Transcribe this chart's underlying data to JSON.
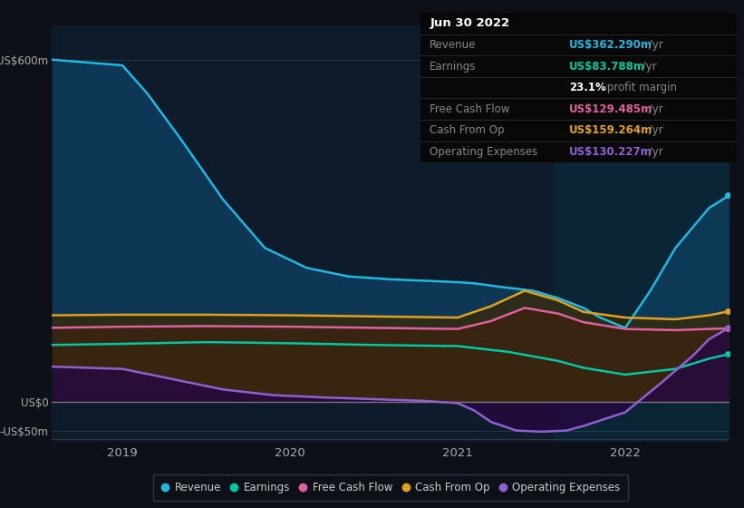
{
  "bg_color": "#0d1117",
  "chart_bg_left": "#0d1b2a",
  "chart_bg_right": "#0a2535",
  "panel_bg": "#0a0a0a",
  "ylim": [
    -70,
    660
  ],
  "yticks": [
    -50,
    0,
    600
  ],
  "ytick_labels": [
    "-US$50m",
    "US$0",
    "US$600m"
  ],
  "xlabel_ticks": [
    2019.0,
    2020.0,
    2021.0,
    2022.0
  ],
  "xlim_start": 2018.58,
  "xlim_end": 2022.62,
  "highlight_x_start": 2021.58,
  "highlight_x_end": 2022.62,
  "series": {
    "Revenue": {
      "color": "#1eb8e0",
      "fill_color": "#0d3d5c",
      "fill_alpha": 0.85,
      "x": [
        2018.58,
        2019.0,
        2019.15,
        2019.35,
        2019.6,
        2019.85,
        2020.1,
        2020.35,
        2020.6,
        2020.85,
        2021.0,
        2021.1,
        2021.25,
        2021.45,
        2021.6,
        2021.75,
        2021.85,
        2022.0,
        2022.15,
        2022.3,
        2022.5,
        2022.62
      ],
      "y": [
        600,
        590,
        540,
        460,
        355,
        270,
        235,
        220,
        215,
        212,
        210,
        208,
        202,
        195,
        182,
        165,
        148,
        130,
        195,
        270,
        340,
        362
      ]
    },
    "Earnings": {
      "color": "#00c8a0",
      "fill_color": "#004d3a",
      "fill_alpha": 0.7,
      "x": [
        2018.58,
        2019.0,
        2019.5,
        2020.0,
        2020.5,
        2021.0,
        2021.3,
        2021.6,
        2021.75,
        2022.0,
        2022.3,
        2022.5,
        2022.62
      ],
      "y": [
        100,
        102,
        105,
        103,
        100,
        98,
        88,
        72,
        60,
        48,
        58,
        76,
        84
      ]
    },
    "FreeCashFlow": {
      "color": "#e060a0",
      "fill_color": "#4a1030",
      "fill_alpha": 0.7,
      "x": [
        2018.58,
        2019.0,
        2019.5,
        2020.0,
        2020.5,
        2021.0,
        2021.2,
        2021.4,
        2021.6,
        2021.75,
        2022.0,
        2022.3,
        2022.5,
        2022.62
      ],
      "y": [
        130,
        132,
        133,
        132,
        130,
        128,
        142,
        165,
        155,
        140,
        128,
        126,
        128,
        129
      ]
    },
    "CashFromOp": {
      "color": "#e0a020",
      "fill_color": "#3a2800",
      "fill_alpha": 0.7,
      "x": [
        2018.58,
        2019.0,
        2019.5,
        2020.0,
        2020.5,
        2021.0,
        2021.2,
        2021.4,
        2021.6,
        2021.75,
        2022.0,
        2022.3,
        2022.5,
        2022.62
      ],
      "y": [
        152,
        153,
        153,
        152,
        150,
        148,
        168,
        195,
        178,
        158,
        148,
        145,
        152,
        159
      ]
    },
    "OperatingExpenses": {
      "color": "#9060d0",
      "fill_color": "#250840",
      "fill_alpha": 0.8,
      "x": [
        2018.58,
        2019.0,
        2019.3,
        2019.6,
        2019.9,
        2020.2,
        2020.5,
        2020.8,
        2021.0,
        2021.1,
        2021.2,
        2021.35,
        2021.5,
        2021.65,
        2021.75,
        2022.0,
        2022.2,
        2022.4,
        2022.5,
        2022.62
      ],
      "y": [
        62,
        58,
        40,
        22,
        12,
        8,
        5,
        2,
        -2,
        -15,
        -35,
        -50,
        -52,
        -50,
        -42,
        -18,
        30,
        80,
        110,
        130
      ]
    }
  },
  "series_order": [
    "Revenue",
    "Earnings",
    "FreeCashFlow",
    "CashFromOp",
    "OperatingExpenses"
  ],
  "legend": [
    {
      "label": "Revenue",
      "color": "#1eb8e0"
    },
    {
      "label": "Earnings",
      "color": "#00c8a0"
    },
    {
      "label": "Free Cash Flow",
      "color": "#e060a0"
    },
    {
      "label": "Cash From Op",
      "color": "#e0a020"
    },
    {
      "label": "Operating Expenses",
      "color": "#9060d0"
    }
  ],
  "table_rows": [
    {
      "label": "Jun 30 2022",
      "value": "",
      "lcolor": "#ffffff",
      "vcolor": "#ffffff",
      "title": true
    },
    {
      "label": "Revenue",
      "value": "US$362.290m",
      "suffix": " /yr",
      "lcolor": "#888888",
      "vcolor": "#1eb8e0"
    },
    {
      "label": "Earnings",
      "value": "US$83.788m",
      "suffix": " /yr",
      "lcolor": "#888888",
      "vcolor": "#00c8a0"
    },
    {
      "label": "",
      "value": "23.1%",
      "suffix": " profit margin",
      "lcolor": "#888888",
      "vcolor": "#ffffff"
    },
    {
      "label": "Free Cash Flow",
      "value": "US$129.485m",
      "suffix": " /yr",
      "lcolor": "#888888",
      "vcolor": "#e060a0"
    },
    {
      "label": "Cash From Op",
      "value": "US$159.264m",
      "suffix": " /yr",
      "lcolor": "#888888",
      "vcolor": "#e0a020"
    },
    {
      "label": "Operating Expenses",
      "value": "US$130.227m",
      "suffix": " /yr",
      "lcolor": "#888888",
      "vcolor": "#9060d0"
    }
  ],
  "grid_color": "#ffffff",
  "grid_alpha": 0.12,
  "zero_line_alpha": 0.4,
  "marker_vals": {
    "Revenue": 362,
    "Earnings": 84,
    "FreeCashFlow": 129,
    "CashFromOp": 159,
    "OperatingExpenses": 130
  }
}
